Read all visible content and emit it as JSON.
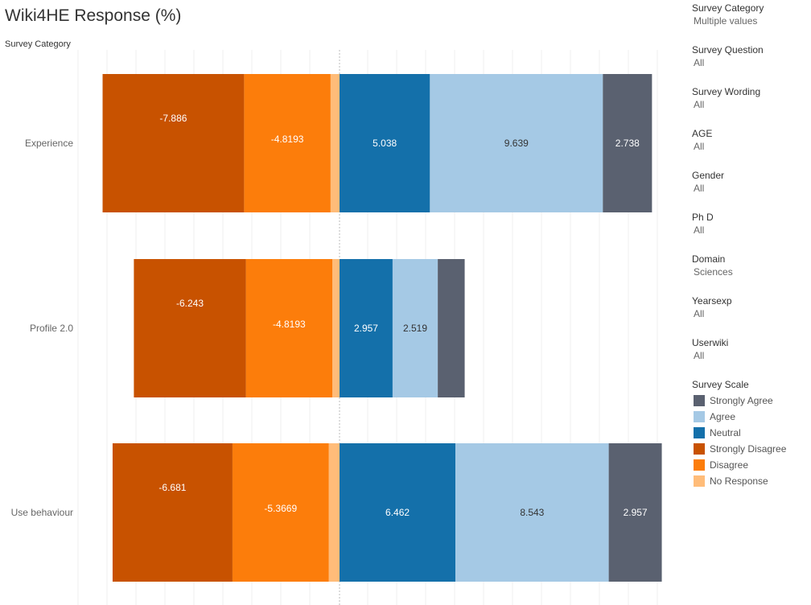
{
  "title": "Wiki4HE Response (%)",
  "row_header": "Survey Category",
  "filters": [
    {
      "title": "Survey Category",
      "value": "Multiple values"
    },
    {
      "title": "Survey Question",
      "value": "All"
    },
    {
      "title": "Survey Wording",
      "value": "All"
    },
    {
      "title": "AGE",
      "value": "All"
    },
    {
      "title": "Gender",
      "value": "All"
    },
    {
      "title": "Ph D",
      "value": "All"
    },
    {
      "title": "Domain",
      "value": "Sciences"
    },
    {
      "title": "Yearsexp",
      "value": "All"
    },
    {
      "title": "Userwiki",
      "value": "All"
    }
  ],
  "legend": {
    "title": "Survey Scale",
    "items": [
      {
        "label": "Strongly Agree",
        "color": "#5a6170"
      },
      {
        "label": "Agree",
        "color": "#a5c9e5"
      },
      {
        "label": "Neutral",
        "color": "#1470aa"
      },
      {
        "label": "Strongly Disagree",
        "color": "#c85200"
      },
      {
        "label": "Disagree",
        "color": "#fc7d0b"
      },
      {
        "label": "No Response",
        "color": "#ffbc79"
      }
    ]
  },
  "chart_data": {
    "type": "bar",
    "orientation": "horizontal",
    "stacked": "diverging",
    "categories": [
      "Experience",
      "Profile 2.0",
      "Use behaviour"
    ],
    "series": [
      {
        "name": "Strongly Disagree",
        "color": "#c85200",
        "values": [
          -7.886,
          -6.243,
          -6.681
        ],
        "labeled": [
          true,
          true,
          true
        ]
      },
      {
        "name": "Disagree",
        "color": "#fc7d0b",
        "values": [
          -4.8193,
          -4.8193,
          -5.3669
        ],
        "labeled": [
          true,
          true,
          true
        ]
      },
      {
        "name": "No Response",
        "color": "#ffbc79",
        "values": [
          -0.5,
          -0.4,
          -0.6
        ],
        "labeled": [
          false,
          false,
          false
        ]
      },
      {
        "name": "Neutral",
        "color": "#1470aa",
        "values": [
          5.038,
          2.957,
          6.462
        ],
        "labeled": [
          true,
          true,
          true
        ]
      },
      {
        "name": "Agree",
        "color": "#a5c9e5",
        "values": [
          9.639,
          2.519,
          8.543
        ],
        "labeled": [
          true,
          true,
          true
        ]
      },
      {
        "name": "Strongly Agree",
        "color": "#5a6170",
        "values": [
          2.738,
          1.5,
          2.957
        ],
        "labeled": [
          true,
          false,
          true
        ]
      }
    ],
    "grid": true,
    "legend_position": "right"
  }
}
